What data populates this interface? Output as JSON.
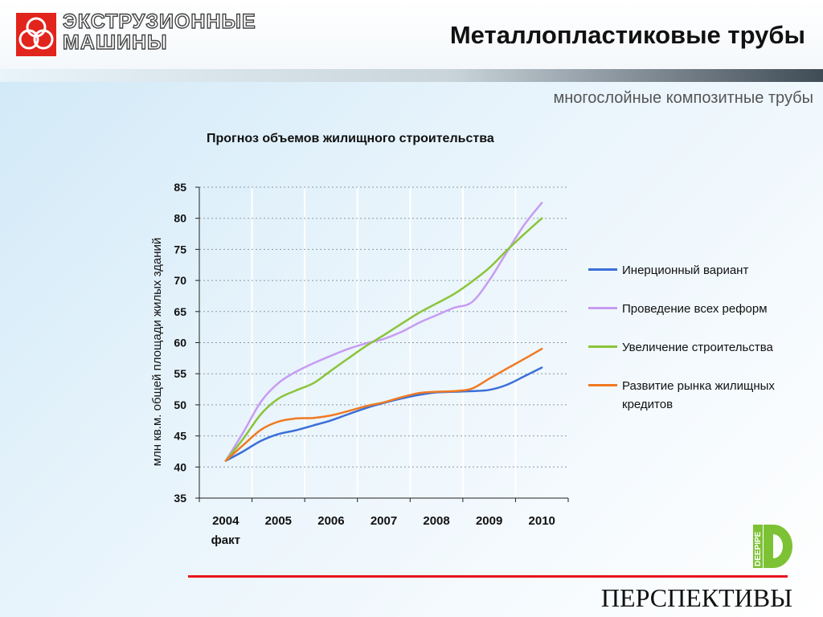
{
  "header": {
    "logo_text_line1": "ЭКСТРУЗИОННЫЕ",
    "logo_text_line2": "МАШИНЫ",
    "title": "Металлопластиковые трубы"
  },
  "subtitle": "многослойные композитные трубы",
  "footer": {
    "text": "ПЕРСПЕКТИВЫ",
    "brand_text": "DEEPIPE"
  },
  "colors": {
    "logo_red": "#e1241c",
    "accent_red": "#e8141c",
    "brand_green": "#7dc234"
  },
  "chart_data": {
    "type": "line",
    "title": "Прогноз объемов жилищного строительства",
    "ylabel": "млн кв.м. общей площади жилых зданий",
    "xlabel": "",
    "ylim": [
      35,
      85
    ],
    "yticks": [
      35,
      40,
      45,
      50,
      55,
      60,
      65,
      70,
      75,
      80,
      85
    ],
    "xlim": [
      2003.5,
      2010.5
    ],
    "xticks": [
      {
        "x": 2004,
        "label": "2004",
        "sublabel": "факт"
      },
      {
        "x": 2005,
        "label": "2005",
        "sublabel": ""
      },
      {
        "x": 2006,
        "label": "2006",
        "sublabel": ""
      },
      {
        "x": 2007,
        "label": "2007",
        "sublabel": ""
      },
      {
        "x": 2008,
        "label": "2008",
        "sublabel": ""
      },
      {
        "x": 2009,
        "label": "2009",
        "sublabel": ""
      },
      {
        "x": 2010,
        "label": "2010",
        "sublabel": ""
      }
    ],
    "grid": true,
    "legend_position": "right",
    "series": [
      {
        "name": "Инерционный вариант",
        "color": "#3b6fd8",
        "points": [
          [
            2004.0,
            41.0
          ],
          [
            2004.33,
            42.5
          ],
          [
            2004.67,
            44.2
          ],
          [
            2005.0,
            45.3
          ],
          [
            2005.33,
            45.9
          ],
          [
            2005.67,
            46.7
          ],
          [
            2006.0,
            47.5
          ],
          [
            2006.33,
            48.5
          ],
          [
            2006.67,
            49.5
          ],
          [
            2007.0,
            50.3
          ],
          [
            2007.33,
            51.0
          ],
          [
            2007.67,
            51.6
          ],
          [
            2008.0,
            52.0
          ],
          [
            2008.33,
            52.1
          ],
          [
            2008.67,
            52.2
          ],
          [
            2009.0,
            52.4
          ],
          [
            2009.33,
            53.2
          ],
          [
            2009.67,
            54.6
          ],
          [
            2010.0,
            56.0
          ]
        ]
      },
      {
        "name": "Проведение всех реформ",
        "color": "#c79cf2",
        "points": [
          [
            2004.0,
            41.0
          ],
          [
            2004.33,
            45.5
          ],
          [
            2004.67,
            50.5
          ],
          [
            2005.0,
            53.5
          ],
          [
            2005.33,
            55.3
          ],
          [
            2005.67,
            56.7
          ],
          [
            2006.0,
            57.9
          ],
          [
            2006.33,
            59.0
          ],
          [
            2006.67,
            59.9
          ],
          [
            2007.0,
            60.6
          ],
          [
            2007.33,
            61.7
          ],
          [
            2007.67,
            63.2
          ],
          [
            2008.0,
            64.4
          ],
          [
            2008.33,
            65.6
          ],
          [
            2008.67,
            66.5
          ],
          [
            2009.0,
            70.0
          ],
          [
            2009.33,
            74.5
          ],
          [
            2009.67,
            79.0
          ],
          [
            2010.0,
            82.5
          ]
        ]
      },
      {
        "name": "Увеличение строительства",
        "color": "#8bc43a",
        "points": [
          [
            2004.0,
            41.0
          ],
          [
            2004.33,
            44.5
          ],
          [
            2004.67,
            48.5
          ],
          [
            2005.0,
            51.0
          ],
          [
            2005.33,
            52.3
          ],
          [
            2005.67,
            53.5
          ],
          [
            2006.0,
            55.5
          ],
          [
            2006.33,
            57.5
          ],
          [
            2006.67,
            59.5
          ],
          [
            2007.0,
            61.2
          ],
          [
            2007.33,
            63.0
          ],
          [
            2007.67,
            64.8
          ],
          [
            2008.0,
            66.3
          ],
          [
            2008.33,
            67.8
          ],
          [
            2008.67,
            69.8
          ],
          [
            2009.0,
            72.0
          ],
          [
            2009.33,
            74.8
          ],
          [
            2009.67,
            77.5
          ],
          [
            2010.0,
            80.0
          ]
        ]
      },
      {
        "name": "Развитие рынка жилищных кредитов",
        "color": "#f07a22",
        "points": [
          [
            2004.0,
            41.0
          ],
          [
            2004.33,
            43.5
          ],
          [
            2004.67,
            46.0
          ],
          [
            2005.0,
            47.3
          ],
          [
            2005.33,
            47.8
          ],
          [
            2005.67,
            47.9
          ],
          [
            2006.0,
            48.3
          ],
          [
            2006.33,
            49.0
          ],
          [
            2006.67,
            49.8
          ],
          [
            2007.0,
            50.4
          ],
          [
            2007.33,
            51.2
          ],
          [
            2007.67,
            51.9
          ],
          [
            2008.0,
            52.1
          ],
          [
            2008.33,
            52.2
          ],
          [
            2008.67,
            52.6
          ],
          [
            2009.0,
            54.2
          ],
          [
            2009.33,
            55.8
          ],
          [
            2009.67,
            57.4
          ],
          [
            2010.0,
            59.0
          ]
        ]
      }
    ]
  }
}
